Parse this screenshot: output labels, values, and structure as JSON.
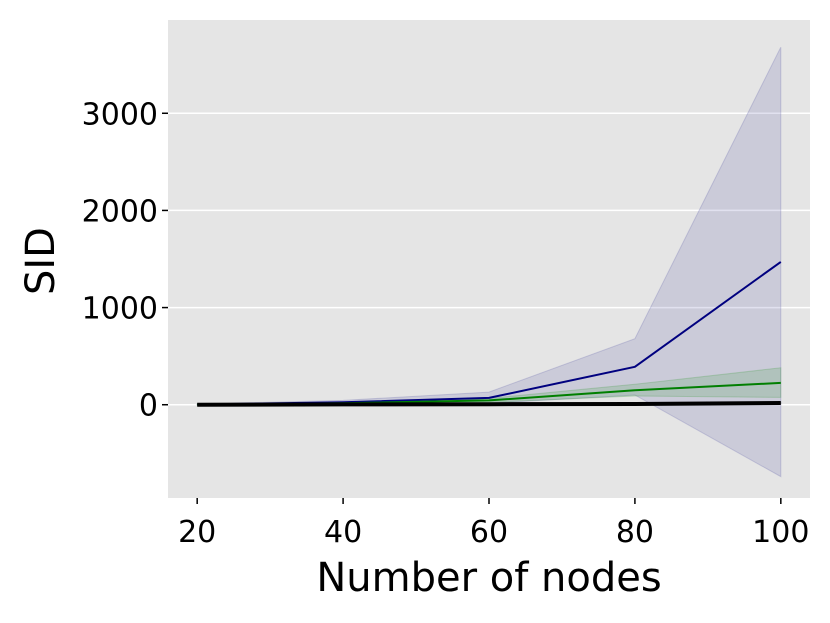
{
  "chart_data": {
    "type": "line",
    "title": "",
    "xlabel": "Number of nodes",
    "ylabel": "SID",
    "xlim": [
      16,
      104
    ],
    "ylim": [
      -960,
      3960
    ],
    "x_ticks": [
      20,
      40,
      60,
      80,
      100
    ],
    "y_ticks": [
      0,
      1000,
      2000,
      3000
    ],
    "grid": true,
    "legend": "none",
    "background_color": "#e5e5e5",
    "grid_color": "#ffffff",
    "series": [
      {
        "color": "#00007f",
        "band_color": "#5a5aa6",
        "linewidth": 2,
        "x": [
          20,
          40,
          60,
          80,
          100
        ],
        "y": [
          2,
          25,
          70,
          390,
          1470
        ],
        "lower": [
          -2,
          5,
          15,
          100,
          -740
        ],
        "upper": [
          6,
          45,
          130,
          680,
          3680
        ]
      },
      {
        "color": "#007f00",
        "band_color": "#3a9a3a",
        "linewidth": 2,
        "x": [
          20,
          40,
          60,
          80,
          100
        ],
        "y": [
          1,
          15,
          45,
          150,
          225
        ],
        "lower": [
          -1,
          8,
          25,
          90,
          75
        ],
        "upper": [
          3,
          22,
          65,
          210,
          380
        ]
      },
      {
        "color": "#000000",
        "band_color": "#000000",
        "linewidth": 4,
        "x": [
          20,
          40,
          60,
          80,
          100
        ],
        "y": [
          0,
          3,
          5,
          8,
          18
        ],
        "lower": [
          0,
          1,
          2,
          4,
          10
        ],
        "upper": [
          0,
          5,
          8,
          12,
          26
        ]
      }
    ]
  }
}
